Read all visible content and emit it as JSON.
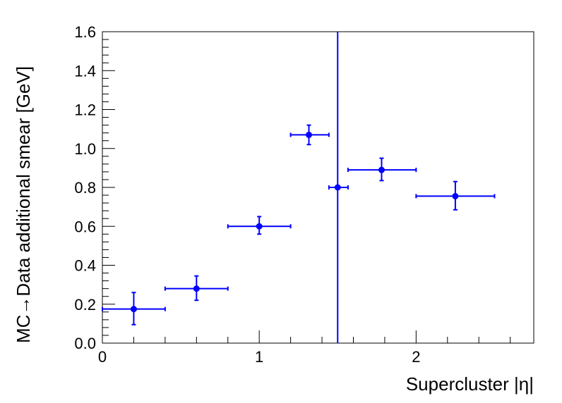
{
  "chart_data": {
    "type": "scatter",
    "title": "",
    "xlabel": "Supercluster |η|",
    "ylabel": "MC→Data additional smear [GeV]",
    "xlim": [
      0,
      2.75
    ],
    "ylim": [
      0,
      1.6
    ],
    "x_ticks": [
      "0",
      "1",
      "2"
    ],
    "y_ticks": [
      "0.0",
      "0.2",
      "0.4",
      "0.6",
      "0.8",
      "1.0",
      "1.2",
      "1.4",
      "1.6"
    ],
    "grid": false,
    "legend": "none",
    "marker_color": "#0000ff",
    "points": [
      {
        "x": 0.2,
        "x_low": 0.0,
        "x_high": 0.4,
        "y": 0.175,
        "y_low": 0.095,
        "y_high": 0.26
      },
      {
        "x": 0.6,
        "x_low": 0.4,
        "x_high": 0.8,
        "y": 0.28,
        "y_low": 0.22,
        "y_high": 0.345
      },
      {
        "x": 1.0,
        "x_low": 0.8,
        "x_high": 1.2,
        "y": 0.6,
        "y_low": 0.56,
        "y_high": 0.65
      },
      {
        "x": 1.3165,
        "x_low": 1.2,
        "x_high": 1.4442,
        "y": 1.07,
        "y_low": 1.02,
        "y_high": 1.12
      },
      {
        "x": 1.5,
        "x_low": 1.4442,
        "x_high": 1.566,
        "y": 0.8,
        "y_low": 0.0,
        "y_high": 1.6
      },
      {
        "x": 1.78,
        "x_low": 1.566,
        "x_high": 2.0,
        "y": 0.89,
        "y_low": 0.835,
        "y_high": 0.95
      },
      {
        "x": 2.25,
        "x_low": 2.0,
        "x_high": 2.5,
        "y": 0.755,
        "y_low": 0.685,
        "y_high": 0.83
      }
    ]
  }
}
